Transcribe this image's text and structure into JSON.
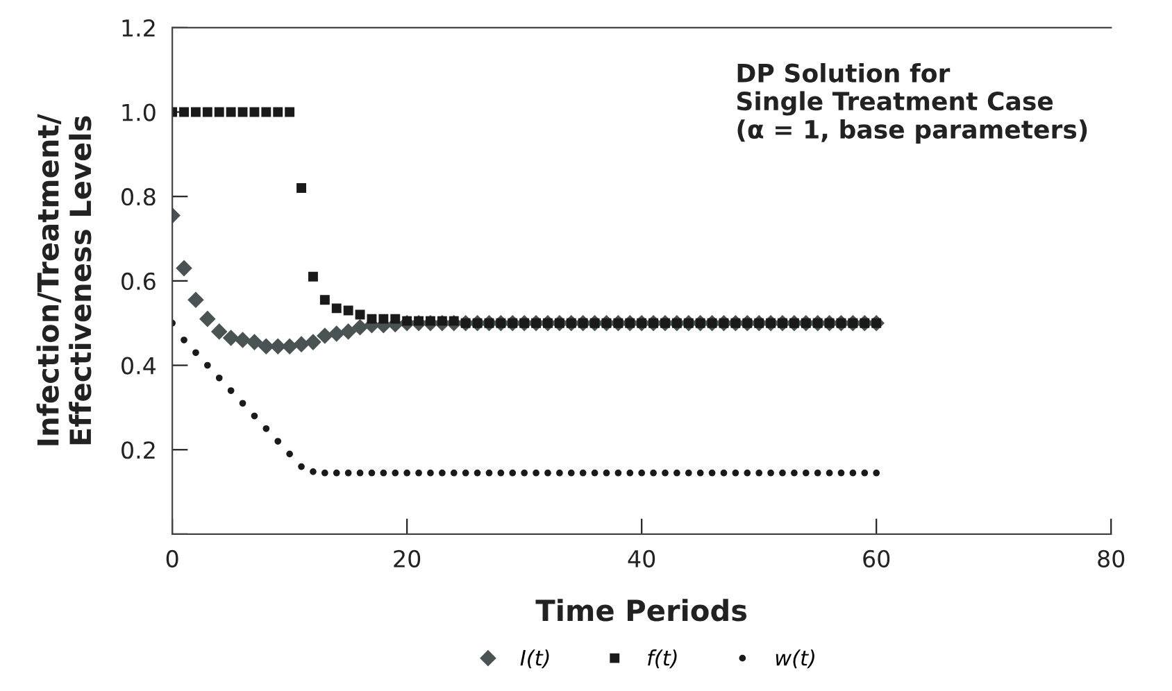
{
  "chart_data": {
    "type": "scatter",
    "xlabel": "Time Periods",
    "ylabel": "Infection/Treatment/\nEffectiveness Levels",
    "annotations": [
      "DP Solution for\nSingle Treatment Case\n(α = 1, base parameters)"
    ],
    "x": [
      0,
      1,
      2,
      3,
      4,
      5,
      6,
      7,
      8,
      9,
      10,
      11,
      12,
      13,
      14,
      15,
      16,
      17,
      18,
      19,
      20,
      21,
      22,
      23,
      24,
      25,
      26,
      27,
      28,
      29,
      30,
      31,
      32,
      33,
      34,
      35,
      36,
      37,
      38,
      39,
      40,
      41,
      42,
      43,
      44,
      45,
      46,
      47,
      48,
      49,
      50,
      51,
      52,
      53,
      54,
      55,
      56,
      57,
      58,
      59,
      60
    ],
    "series": [
      {
        "name": "I(t)",
        "color": "#4a5353",
        "marker": "diamond",
        "values": [
          0.755,
          0.63,
          0.555,
          0.51,
          0.48,
          0.465,
          0.46,
          0.455,
          0.445,
          0.445,
          0.445,
          0.45,
          0.455,
          0.47,
          0.475,
          0.48,
          0.49,
          0.495,
          0.495,
          0.497,
          0.5,
          0.5,
          0.5,
          0.5,
          0.5,
          0.5,
          0.5,
          0.5,
          0.5,
          0.5,
          0.5,
          0.5,
          0.5,
          0.5,
          0.5,
          0.5,
          0.5,
          0.5,
          0.5,
          0.5,
          0.5,
          0.5,
          0.5,
          0.5,
          0.5,
          0.5,
          0.5,
          0.5,
          0.5,
          0.5,
          0.5,
          0.5,
          0.5,
          0.5,
          0.5,
          0.5,
          0.5,
          0.5,
          0.5,
          0.5,
          0.5
        ]
      },
      {
        "name": "f(t)",
        "color": "#1a1a1a",
        "marker": "square",
        "values": [
          1.0,
          1.0,
          1.0,
          1.0,
          1.0,
          1.0,
          1.0,
          1.0,
          1.0,
          1.0,
          1.0,
          0.82,
          0.61,
          0.555,
          0.535,
          0.53,
          0.52,
          0.51,
          0.51,
          0.51,
          0.505,
          0.505,
          0.505,
          0.505,
          0.505,
          0.5,
          0.5,
          0.5,
          0.5,
          0.5,
          0.5,
          0.5,
          0.5,
          0.5,
          0.5,
          0.5,
          0.5,
          0.5,
          0.5,
          0.5,
          0.5,
          0.5,
          0.5,
          0.5,
          0.5,
          0.5,
          0.5,
          0.5,
          0.5,
          0.5,
          0.5,
          0.5,
          0.5,
          0.5,
          0.5,
          0.5,
          0.5,
          0.5,
          0.5,
          0.5,
          0.5
        ]
      },
      {
        "name": "w(t)",
        "color": "#1a1a1a",
        "marker": "circle",
        "values": [
          0.5,
          0.46,
          0.43,
          0.4,
          0.37,
          0.34,
          0.31,
          0.28,
          0.25,
          0.22,
          0.19,
          0.16,
          0.148,
          0.145,
          0.145,
          0.145,
          0.145,
          0.145,
          0.145,
          0.145,
          0.145,
          0.145,
          0.145,
          0.145,
          0.145,
          0.145,
          0.145,
          0.145,
          0.145,
          0.145,
          0.145,
          0.145,
          0.145,
          0.145,
          0.145,
          0.145,
          0.145,
          0.145,
          0.145,
          0.145,
          0.145,
          0.145,
          0.145,
          0.145,
          0.145,
          0.145,
          0.145,
          0.145,
          0.145,
          0.145,
          0.145,
          0.145,
          0.145,
          0.145,
          0.145,
          0.145,
          0.145,
          0.145,
          0.145,
          0.145,
          0.145
        ]
      }
    ],
    "xlim": [
      0,
      80
    ],
    "xticks": [
      0,
      20,
      40,
      60,
      80
    ],
    "ylim": [
      0,
      1.2
    ],
    "yticks": [
      {
        "value": 0,
        "label": null
      },
      0.2,
      0.4,
      0.6,
      0.8,
      {
        "value": 1.0,
        "label": "1.0"
      },
      1.2
    ],
    "legend": "bottom",
    "grid": false
  }
}
